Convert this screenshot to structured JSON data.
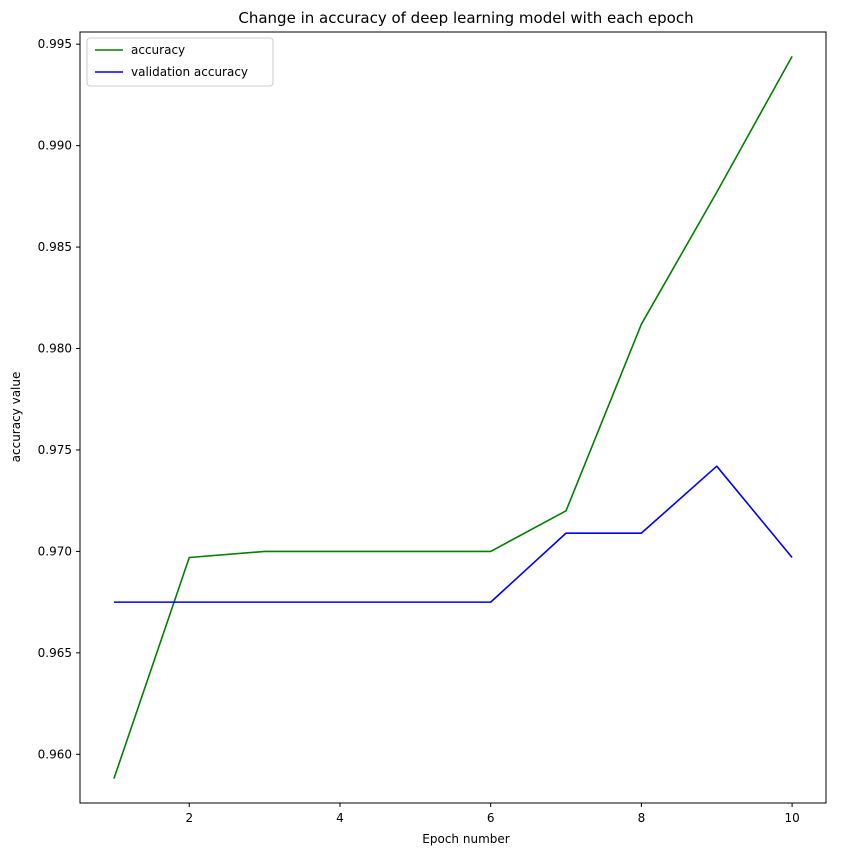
{
  "chart_data": {
    "type": "line",
    "title": "Change in accuracy of deep learning model with each epoch",
    "xlabel": "Epoch number",
    "ylabel": "accuracy value",
    "xlim": [
      0.55,
      10.45
    ],
    "ylim": [
      0.9576,
      0.9956
    ],
    "xticks": [
      2,
      4,
      6,
      8,
      10
    ],
    "yticks": [
      0.96,
      0.965,
      0.97,
      0.975,
      0.98,
      0.985,
      0.99,
      0.995
    ],
    "ytick_labels": [
      "0.960",
      "0.965",
      "0.970",
      "0.975",
      "0.980",
      "0.985",
      "0.990",
      "0.995"
    ],
    "grid": false,
    "legend_position": "top-left",
    "x": [
      1,
      2,
      3,
      4,
      5,
      6,
      7,
      8,
      9,
      10
    ],
    "series": [
      {
        "name": "accuracy",
        "color": "#008000",
        "values": [
          0.9588,
          0.9697,
          0.97,
          0.97,
          0.97,
          0.97,
          0.972,
          0.9812,
          0.9877,
          0.9944
        ]
      },
      {
        "name": "validation accuracy",
        "color": "#0000ff",
        "values": [
          0.9675,
          0.9675,
          0.9675,
          0.9675,
          0.9675,
          0.9675,
          0.9709,
          0.9709,
          0.9742,
          0.9697
        ]
      }
    ]
  }
}
